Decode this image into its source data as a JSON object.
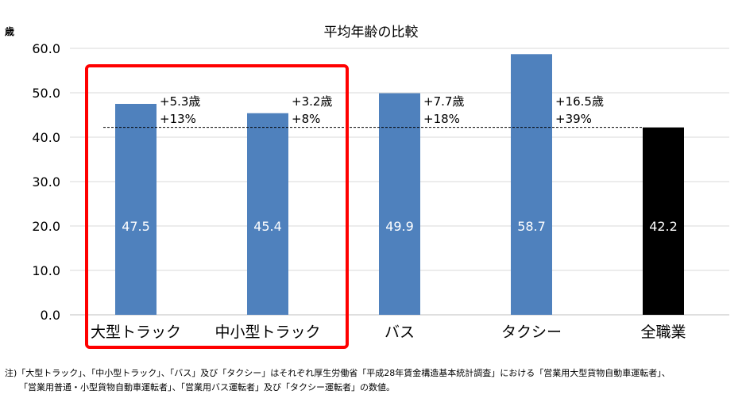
{
  "chart_data": {
    "type": "bar",
    "title": "平均年齢の比較",
    "ylabel": "歳",
    "ylim": [
      0,
      60
    ],
    "y_ticks": [
      "0.0",
      "10.0",
      "20.0",
      "30.0",
      "40.0",
      "50.0",
      "60.0"
    ],
    "grid": true,
    "categories": [
      "大型トラック",
      "中小型トラック",
      "バス",
      "タクシー",
      "全職業"
    ],
    "values": [
      47.5,
      45.4,
      49.9,
      58.7,
      42.2
    ],
    "value_labels": [
      "47.5",
      "45.4",
      "49.9",
      "58.7",
      "42.2"
    ],
    "bar_colors": [
      "#4f81bd",
      "#4f81bd",
      "#4f81bd",
      "#4f81bd",
      "#000000"
    ],
    "annotations": [
      {
        "category": "大型トラック",
        "diff": "+5.3歳",
        "pct": "+13%"
      },
      {
        "category": "中小型トラック",
        "diff": "+3.2歳",
        "pct": "+8%"
      },
      {
        "category": "バス",
        "diff": "+7.7歳",
        "pct": "+18%"
      },
      {
        "category": "タクシー",
        "diff": "+16.5歳",
        "pct": "+39%"
      }
    ],
    "reference_line": {
      "value": 42.2,
      "style": "dashed"
    },
    "highlight": {
      "categories": [
        "大型トラック",
        "中小型トラック"
      ],
      "color": "#ff0000"
    }
  },
  "notes": [
    "注)「大型トラック」、「中小型トラック」、「バス」及び「タクシー」はそれぞれ厚生労働省「平成28年賃金構造基本統計調査」における「営業用大型貨物自動車運転者」、",
    "「営業用普通・小型貨物自動車運転者」、「営業用バス運転者」及び「タクシー運転者」の数値。"
  ]
}
